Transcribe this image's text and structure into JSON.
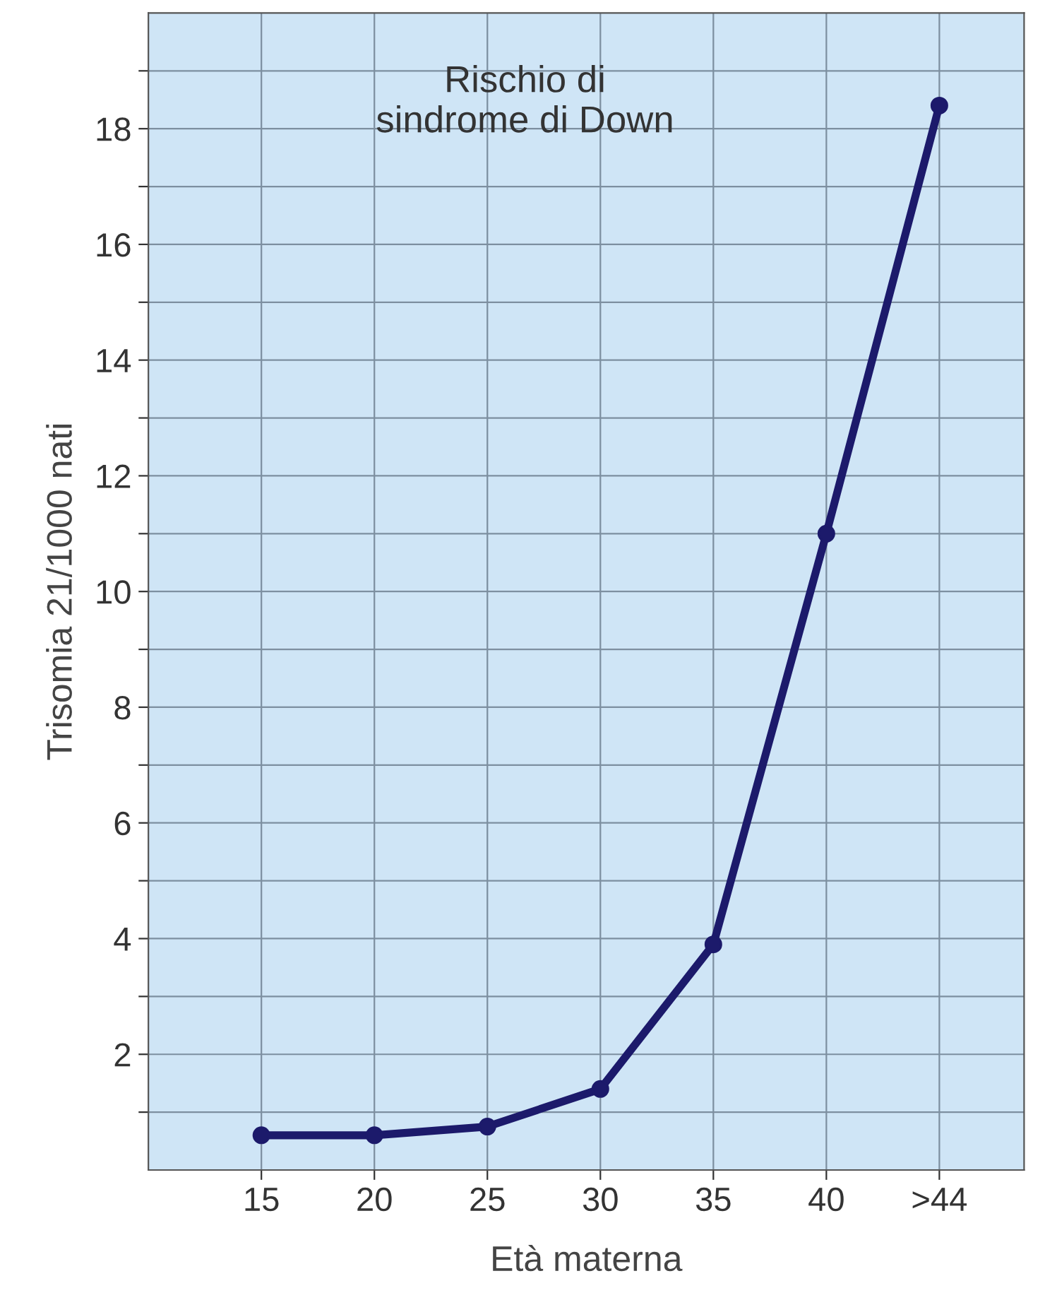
{
  "chart_data": {
    "type": "line",
    "title": "Rischio di\nsindrome di Down",
    "xlabel": "Età materna",
    "ylabel": "Trisomia 21/1000 nati",
    "categories": [
      "15",
      "20",
      "25",
      "30",
      "35",
      "40",
      ">44"
    ],
    "series": [
      {
        "color": "#1c1a6b",
        "values": [
          0.6,
          0.6,
          0.75,
          1.4,
          3.9,
          11.0,
          18.4
        ]
      }
    ],
    "ylim": [
      0,
      20
    ],
    "yticks": [
      {
        "value": 1,
        "label": null
      },
      2,
      {
        "value": 3,
        "label": null
      },
      4,
      {
        "value": 5,
        "label": null
      },
      6,
      {
        "value": 7,
        "label": null
      },
      8,
      {
        "value": 9,
        "label": null
      },
      10,
      {
        "value": 11,
        "label": null
      },
      12,
      {
        "value": 13,
        "label": null
      },
      14,
      {
        "value": 15,
        "label": null
      },
      16,
      {
        "value": 17,
        "label": null
      },
      18,
      {
        "value": 19,
        "label": null
      }
    ],
    "grid": true,
    "marker": "circle",
    "line_style": "solid",
    "legend": false
  }
}
